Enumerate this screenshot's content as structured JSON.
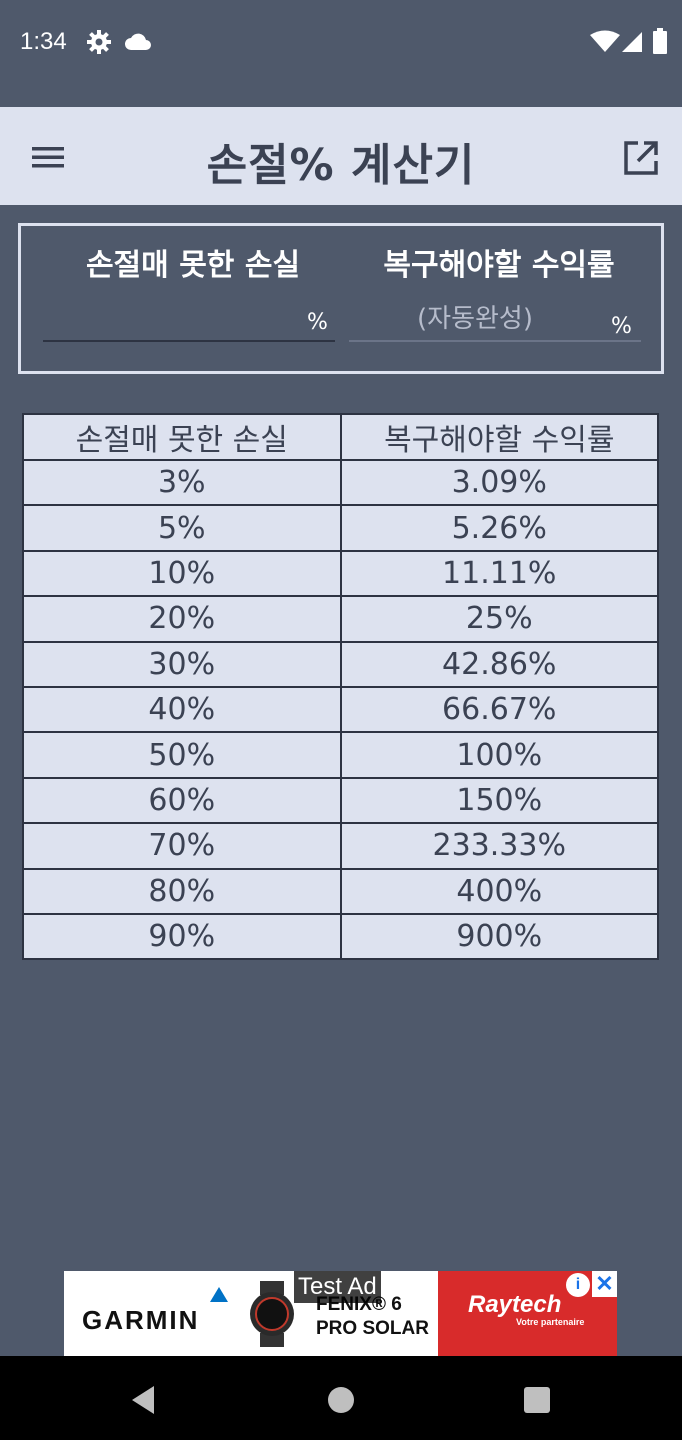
{
  "status_bar": {
    "time": "1:34",
    "icons": [
      "gear-icon",
      "cloud-icon",
      "wifi-icon",
      "signal-icon",
      "battery-icon"
    ]
  },
  "app_bar": {
    "title": "손절% 계산기",
    "menu_icon": "menu-icon",
    "open_icon": "open-in-new-icon",
    "background": "#dde2ef"
  },
  "calculator": {
    "loss_label": "손절매 못한 손실",
    "loss_value": "",
    "loss_unit": "%",
    "recovery_label": "복구해야할 수익률",
    "recovery_placeholder": "(자동완성)",
    "recovery_unit": "%"
  },
  "table": {
    "headers": [
      "손절매 못한 손실",
      "복구해야할 수익률"
    ],
    "rows": [
      [
        "3%",
        "3.09%"
      ],
      [
        "5%",
        "5.26%"
      ],
      [
        "10%",
        "11.11%"
      ],
      [
        "20%",
        "25%"
      ],
      [
        "30%",
        "42.86%"
      ],
      [
        "40%",
        "66.67%"
      ],
      [
        "50%",
        "100%"
      ],
      [
        "60%",
        "150%"
      ],
      [
        "70%",
        "233.33%"
      ],
      [
        "80%",
        "400%"
      ],
      [
        "90%",
        "900%"
      ]
    ]
  },
  "ad": {
    "label": "Test Ad",
    "brand": "GARMIN",
    "product_line1": "FENIX® 6",
    "product_line2": "PRO SOLAR",
    "advertiser": "Raytech",
    "advertiser_sub": "Votre partenaire",
    "info_glyph": "i",
    "close_glyph": "✕"
  },
  "colors": {
    "background": "#4f596b",
    "panel": "#dde2ef",
    "text_dark": "#3b4253"
  }
}
